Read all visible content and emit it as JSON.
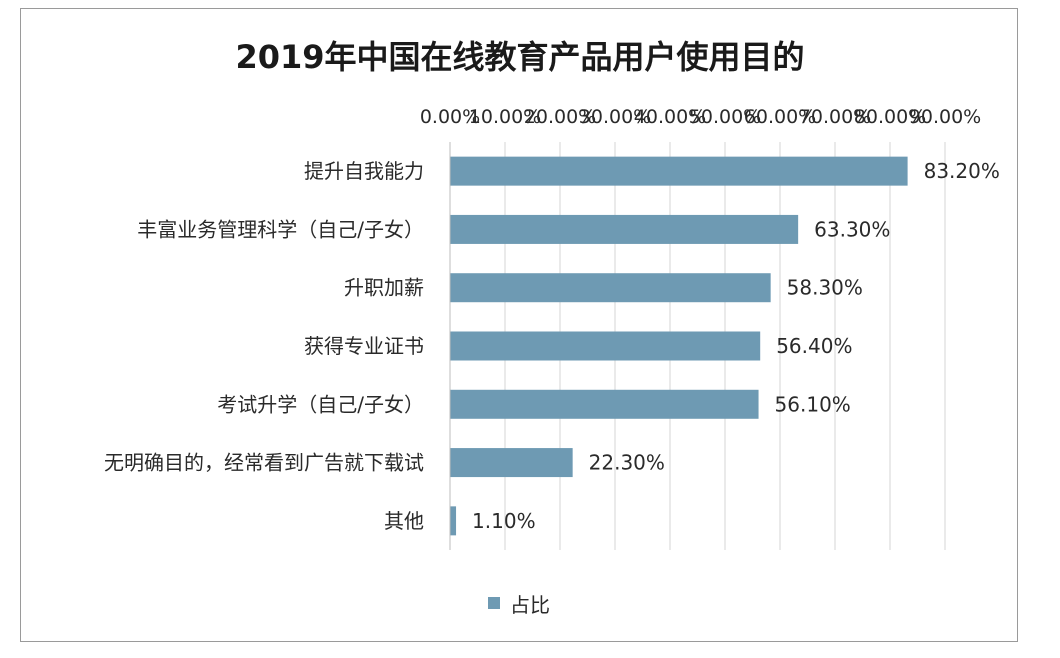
{
  "chart_data": {
    "type": "bar",
    "orientation": "horizontal",
    "title": "2019年中国在线教育产品用户使用目的",
    "categories": [
      "提升自我能力",
      "丰富业务管理科学（自己/子女）",
      "升职加薪",
      "获得专业证书",
      "考试升学（自己/子女）",
      "无明确目的，经常看到广告就下载试",
      "其他"
    ],
    "series": [
      {
        "name": "占比",
        "values": [
          83.2,
          63.3,
          58.3,
          56.4,
          56.1,
          22.3,
          1.1
        ],
        "value_labels": [
          "83.20%",
          "63.30%",
          "58.30%",
          "56.40%",
          "56.10%",
          "22.30%",
          "1.10%"
        ],
        "color": "#6e9ab3"
      }
    ],
    "xlim": [
      0,
      90
    ],
    "x_ticks": [
      0,
      10,
      20,
      30,
      40,
      50,
      60,
      70,
      80,
      90
    ],
    "x_tick_labels": [
      "0.00%",
      "10.00%",
      "20.00%",
      "30.00%",
      "40.00%",
      "50.00%",
      "60.00%",
      "70.00%",
      "80.00%",
      "90.00%"
    ],
    "x_axis_position": "top",
    "grid": true,
    "legend_position": "bottom"
  }
}
